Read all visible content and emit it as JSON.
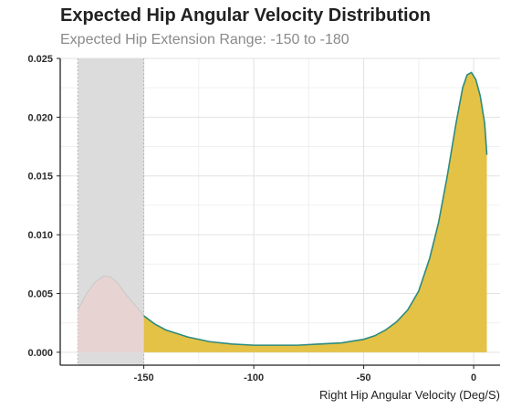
{
  "chart_data": {
    "type": "area",
    "title": "Expected Hip Angular Velocity Distribution",
    "subtitle": "Expected Hip Extension Range: -150 to -180",
    "xlabel": "Right Hip Angular Velocity (Deg/S)",
    "ylabel": "",
    "xlim": [
      -188,
      12
    ],
    "ylim": [
      -0.0011,
      0.025
    ],
    "x_ticks": [
      -150,
      -100,
      -50,
      0
    ],
    "x_tick_labels": [
      "-150",
      "-100",
      "-50",
      "0"
    ],
    "y_ticks": [
      0.0,
      0.005,
      0.01,
      0.015,
      0.02,
      0.025
    ],
    "y_tick_labels": [
      "0.000",
      "0.005",
      "0.010",
      "0.015",
      "0.020",
      "0.025"
    ],
    "grid": true,
    "highlight_range": [
      -180,
      -150
    ],
    "fill_color": "#e3c246",
    "line_color": "#2e8b7f",
    "highlight_color": "#dcdcdc",
    "highlight_fill_color": "#e8d3d3",
    "x": [
      -180,
      -176,
      -172,
      -168,
      -165,
      -162,
      -158,
      -154,
      -150,
      -145,
      -140,
      -130,
      -120,
      -110,
      -100,
      -90,
      -80,
      -70,
      -60,
      -50,
      -45,
      -40,
      -35,
      -30,
      -25,
      -20,
      -16,
      -12,
      -8,
      -5,
      -3,
      -1,
      1,
      3,
      5,
      6
    ],
    "y": [
      0.0036,
      0.005,
      0.006,
      0.0065,
      0.0064,
      0.0059,
      0.0049,
      0.004,
      0.0031,
      0.0024,
      0.0019,
      0.0013,
      0.0009,
      0.0007,
      0.0006,
      0.0006,
      0.0006,
      0.0007,
      0.0008,
      0.0011,
      0.0014,
      0.0019,
      0.0026,
      0.0036,
      0.0052,
      0.008,
      0.011,
      0.015,
      0.0195,
      0.0225,
      0.0236,
      0.0238,
      0.0232,
      0.0218,
      0.0195,
      0.0168
    ]
  }
}
